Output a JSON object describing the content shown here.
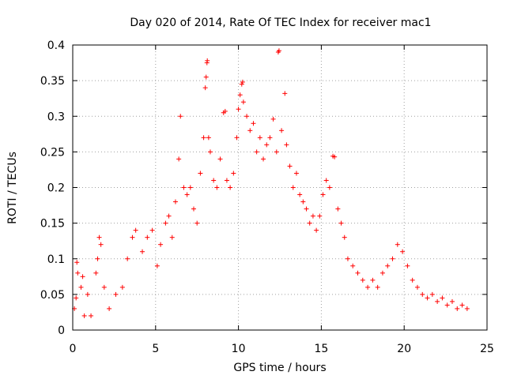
{
  "chart_data": {
    "type": "scatter",
    "title": "Day 020 of 2014, Rate Of TEC Index for receiver mac1",
    "xlabel": "GPS time / hours",
    "ylabel": "ROTI / TECUs",
    "xlim": [
      0,
      25
    ],
    "ylim": [
      0,
      0.4
    ],
    "x_ticks": [
      0,
      5,
      10,
      15,
      20,
      25
    ],
    "x_tick_labels": [
      "0",
      "5",
      "10",
      "15",
      "20",
      "25"
    ],
    "y_ticks": [
      0,
      0.05,
      0.1,
      0.15,
      0.2,
      0.25,
      0.3,
      0.35,
      0.4
    ],
    "y_tick_labels": [
      "0",
      "0.05",
      "0.1",
      "0.15",
      "0.2",
      "0.25",
      "0.3",
      "0.35",
      "0.4"
    ],
    "grid": true,
    "marker": "+",
    "color": "#ff0000",
    "series": [
      {
        "name": "ROTI",
        "points": [
          [
            0.1,
            0.03
          ],
          [
            0.2,
            0.045
          ],
          [
            0.25,
            0.095
          ],
          [
            0.3,
            0.08
          ],
          [
            0.5,
            0.06
          ],
          [
            0.6,
            0.075
          ],
          [
            0.7,
            0.02
          ],
          [
            0.9,
            0.05
          ],
          [
            1.1,
            0.02
          ],
          [
            1.4,
            0.08
          ],
          [
            1.5,
            0.1
          ],
          [
            1.6,
            0.13
          ],
          [
            1.7,
            0.12
          ],
          [
            1.9,
            0.06
          ],
          [
            2.2,
            0.03
          ],
          [
            2.6,
            0.05
          ],
          [
            3.0,
            0.06
          ],
          [
            3.3,
            0.1
          ],
          [
            3.6,
            0.13
          ],
          [
            3.8,
            0.14
          ],
          [
            4.2,
            0.11
          ],
          [
            4.5,
            0.13
          ],
          [
            4.8,
            0.14
          ],
          [
            5.1,
            0.09
          ],
          [
            5.3,
            0.12
          ],
          [
            5.6,
            0.15
          ],
          [
            5.8,
            0.16
          ],
          [
            6.0,
            0.13
          ],
          [
            6.2,
            0.18
          ],
          [
            6.4,
            0.24
          ],
          [
            6.5,
            0.3
          ],
          [
            6.7,
            0.2
          ],
          [
            6.9,
            0.19
          ],
          [
            7.1,
            0.2
          ],
          [
            7.3,
            0.17
          ],
          [
            7.5,
            0.15
          ],
          [
            7.7,
            0.22
          ],
          [
            7.9,
            0.27
          ],
          [
            8.0,
            0.34
          ],
          [
            8.05,
            0.355
          ],
          [
            8.1,
            0.375
          ],
          [
            8.12,
            0.378
          ],
          [
            8.2,
            0.27
          ],
          [
            8.3,
            0.25
          ],
          [
            8.5,
            0.21
          ],
          [
            8.7,
            0.2
          ],
          [
            8.9,
            0.24
          ],
          [
            9.1,
            0.305
          ],
          [
            9.2,
            0.307
          ],
          [
            9.3,
            0.21
          ],
          [
            9.5,
            0.2
          ],
          [
            9.7,
            0.22
          ],
          [
            9.9,
            0.27
          ],
          [
            10.0,
            0.31
          ],
          [
            10.1,
            0.33
          ],
          [
            10.2,
            0.345
          ],
          [
            10.25,
            0.348
          ],
          [
            10.3,
            0.32
          ],
          [
            10.5,
            0.3
          ],
          [
            10.7,
            0.28
          ],
          [
            10.9,
            0.29
          ],
          [
            11.1,
            0.25
          ],
          [
            11.3,
            0.27
          ],
          [
            11.5,
            0.24
          ],
          [
            11.7,
            0.26
          ],
          [
            11.9,
            0.27
          ],
          [
            12.1,
            0.296
          ],
          [
            12.3,
            0.25
          ],
          [
            12.4,
            0.39
          ],
          [
            12.45,
            0.392
          ],
          [
            12.6,
            0.28
          ],
          [
            12.8,
            0.332
          ],
          [
            12.9,
            0.26
          ],
          [
            13.1,
            0.23
          ],
          [
            13.3,
            0.2
          ],
          [
            13.5,
            0.22
          ],
          [
            13.7,
            0.19
          ],
          [
            13.9,
            0.18
          ],
          [
            14.1,
            0.17
          ],
          [
            14.3,
            0.15
          ],
          [
            14.5,
            0.16
          ],
          [
            14.7,
            0.14
          ],
          [
            14.9,
            0.16
          ],
          [
            15.1,
            0.19
          ],
          [
            15.3,
            0.21
          ],
          [
            15.5,
            0.2
          ],
          [
            15.7,
            0.244
          ],
          [
            15.8,
            0.243
          ],
          [
            16.0,
            0.17
          ],
          [
            16.2,
            0.15
          ],
          [
            16.4,
            0.13
          ],
          [
            16.6,
            0.1
          ],
          [
            16.9,
            0.09
          ],
          [
            17.2,
            0.08
          ],
          [
            17.5,
            0.07
          ],
          [
            17.8,
            0.06
          ],
          [
            18.1,
            0.07
          ],
          [
            18.4,
            0.06
          ],
          [
            18.7,
            0.08
          ],
          [
            19.0,
            0.09
          ],
          [
            19.3,
            0.1
          ],
          [
            19.6,
            0.12
          ],
          [
            19.9,
            0.11
          ],
          [
            20.2,
            0.09
          ],
          [
            20.5,
            0.07
          ],
          [
            20.8,
            0.06
          ],
          [
            21.1,
            0.05
          ],
          [
            21.4,
            0.045
          ],
          [
            21.7,
            0.05
          ],
          [
            22.0,
            0.04
          ],
          [
            22.3,
            0.045
          ],
          [
            22.6,
            0.035
          ],
          [
            22.9,
            0.04
          ],
          [
            23.2,
            0.03
          ],
          [
            23.5,
            0.035
          ],
          [
            23.8,
            0.03
          ]
        ]
      }
    ]
  }
}
